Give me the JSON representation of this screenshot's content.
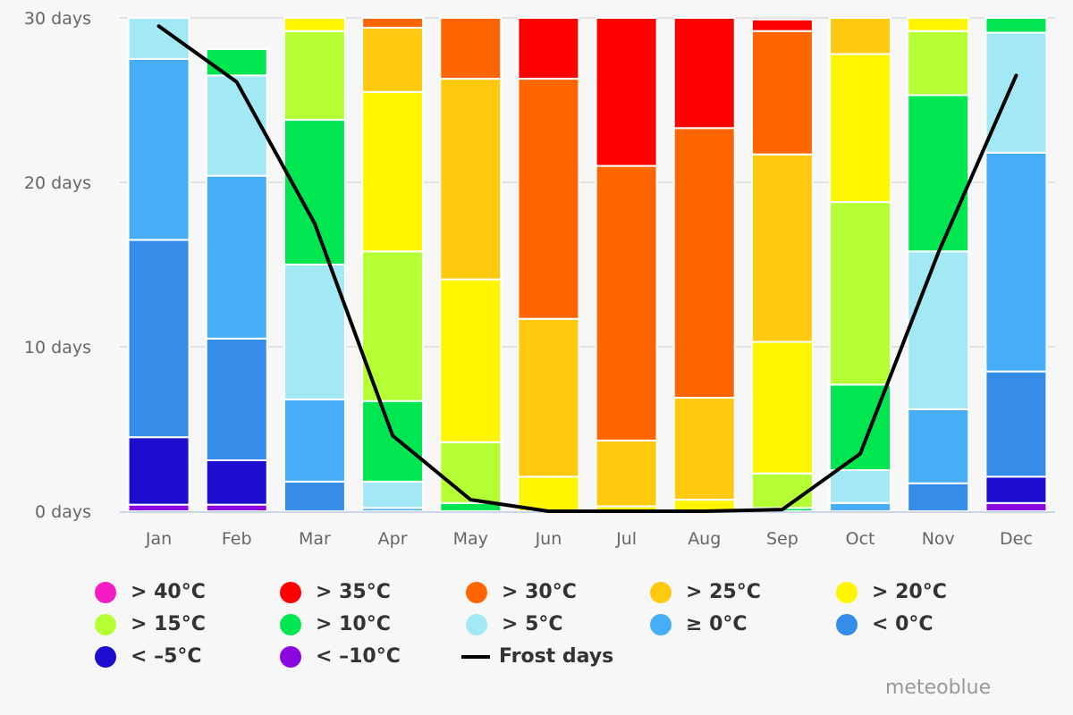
{
  "chart_data": {
    "type": "bar",
    "stacked": true,
    "title": "",
    "xlabel": "",
    "ylabel": "",
    "ylim": [
      0,
      30
    ],
    "y_ticks": [
      "0 days",
      "10 days",
      "20 days",
      "30 days"
    ],
    "y_tick_values": [
      0,
      10,
      20,
      30
    ],
    "grid": true,
    "legend_position": "bottom",
    "categories": [
      "Jan",
      "Feb",
      "Mar",
      "Apr",
      "May",
      "Jun",
      "Jul",
      "Aug",
      "Sep",
      "Oct",
      "Nov",
      "Dec"
    ],
    "series": [
      {
        "name": "< -10°C",
        "color": "#8b07e0",
        "values": [
          0.4,
          0.4,
          0,
          0,
          0,
          0,
          0,
          0,
          0,
          0,
          0,
          0.5
        ]
      },
      {
        "name": "< -5°C",
        "color": "#1c0dcf",
        "values": [
          4.1,
          2.7,
          0,
          0,
          0,
          0,
          0,
          0,
          0,
          0,
          0,
          1.6
        ]
      },
      {
        "name": "< 0°C",
        "color": "#358ce9",
        "values": [
          12.0,
          7.4,
          1.8,
          0,
          0,
          0,
          0,
          0,
          0,
          0,
          1.7,
          6.4
        ]
      },
      {
        "name": "≥ 0°C",
        "color": "#45aef6",
        "values": [
          11.0,
          9.9,
          5.0,
          0.2,
          0,
          0,
          0,
          0,
          0,
          0.5,
          4.5,
          13.3
        ]
      },
      {
        "name": "> 5°C",
        "color": "#a2e8f5",
        "values": [
          3.5,
          6.1,
          8.2,
          1.6,
          0,
          0,
          0,
          0,
          0,
          2.0,
          9.6,
          7.3
        ]
      },
      {
        "name": "> 10°C",
        "color": "#00e650",
        "values": [
          0,
          1.6,
          8.8,
          4.9,
          0.5,
          0,
          0,
          0,
          0.2,
          5.2,
          9.5,
          1.9
        ]
      },
      {
        "name": "> 15°C",
        "color": "#b5ff35",
        "values": [
          0,
          0,
          5.4,
          9.1,
          3.7,
          0,
          0,
          0,
          2.1,
          11.1,
          3.9,
          0
        ]
      },
      {
        "name": "> 20°C",
        "color": "#fff500",
        "values": [
          0,
          0,
          1.8,
          9.7,
          9.9,
          2.1,
          0.3,
          0.7,
          8.0,
          9.0,
          0.9,
          0
        ]
      },
      {
        "name": "> 25°C",
        "color": "#ffc90f",
        "values": [
          0,
          0,
          0,
          3.9,
          12.2,
          9.6,
          4.0,
          6.2,
          11.4,
          3.2,
          0,
          0
        ]
      },
      {
        "name": "> 30°C",
        "color": "#ff6600",
        "values": [
          0,
          0,
          0,
          0.6,
          4.7,
          14.6,
          16.7,
          16.4,
          7.5,
          0,
          0,
          0
        ]
      },
      {
        "name": "> 35°C",
        "color": "#ff0000",
        "values": [
          0,
          0,
          0,
          0,
          0,
          3.7,
          10.0,
          7.7,
          0.7,
          0,
          0,
          0
        ]
      },
      {
        "name": "> 40°C",
        "color": "#f51bc5",
        "values": [
          0,
          0,
          0,
          0,
          0,
          0,
          0,
          0,
          0,
          0,
          0,
          0
        ]
      }
    ],
    "line_series": {
      "name": "Frost days",
      "color": "#000000",
      "values": [
        29.5,
        26.1,
        17.5,
        4.6,
        0.7,
        0,
        0,
        0,
        0.1,
        3.5,
        15.7,
        26.5
      ]
    }
  },
  "legend": [
    {
      "label": "> 40°C",
      "color": "#f51bc5",
      "kind": "dot"
    },
    {
      "label": "> 35°C",
      "color": "#ff0000",
      "kind": "dot"
    },
    {
      "label": "> 30°C",
      "color": "#ff6600",
      "kind": "dot"
    },
    {
      "label": "> 25°C",
      "color": "#ffc90f",
      "kind": "dot"
    },
    {
      "label": "> 20°C",
      "color": "#fff500",
      "kind": "dot"
    },
    {
      "label": "> 15°C",
      "color": "#b5ff35",
      "kind": "dot"
    },
    {
      "label": "> 10°C",
      "color": "#00e650",
      "kind": "dot"
    },
    {
      "label": "> 5°C",
      "color": "#a2e8f5",
      "kind": "dot"
    },
    {
      "label": "≥ 0°C",
      "color": "#45aef6",
      "kind": "dot"
    },
    {
      "label": "< 0°C",
      "color": "#358ce9",
      "kind": "dot"
    },
    {
      "label": "< –5°C",
      "color": "#1c0dcf",
      "kind": "dot"
    },
    {
      "label": "< –10°C",
      "color": "#8b07e0",
      "kind": "dot"
    },
    {
      "label": "Frost days",
      "color": "#000000",
      "kind": "line"
    }
  ],
  "credit": "meteoblue"
}
